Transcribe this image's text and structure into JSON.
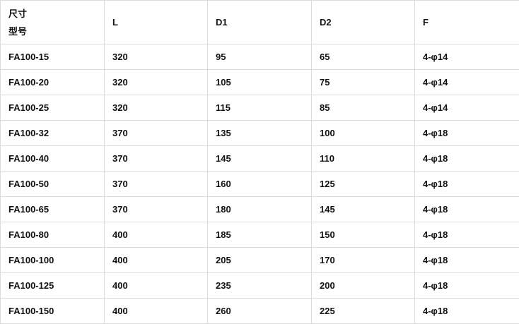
{
  "header": {
    "corner_top": "尺寸",
    "corner_bottom": "型号",
    "columns": [
      "L",
      "D1",
      "D2",
      "F"
    ]
  },
  "rows": [
    [
      "FA100-15",
      "320",
      "95",
      "65",
      "4-φ14"
    ],
    [
      "FA100-20",
      "320",
      "105",
      "75",
      "4-φ14"
    ],
    [
      "FA100-25",
      "320",
      "115",
      "85",
      "4-φ14"
    ],
    [
      "FA100-32",
      "370",
      "135",
      "100",
      "4-φ18"
    ],
    [
      "FA100-40",
      "370",
      "145",
      "110",
      "4-φ18"
    ],
    [
      "FA100-50",
      "370",
      "160",
      "125",
      "4-φ18"
    ],
    [
      "FA100-65",
      "370",
      "180",
      "145",
      "4-φ18"
    ],
    [
      "FA100-80",
      "400",
      "185",
      "150",
      "4-φ18"
    ],
    [
      "FA100-100",
      "400",
      "205",
      "170",
      "4-φ18"
    ],
    [
      "FA100-125",
      "400",
      "235",
      "200",
      "4-φ18"
    ],
    [
      "FA100-150",
      "400",
      "260",
      "225",
      "4-φ18"
    ]
  ]
}
